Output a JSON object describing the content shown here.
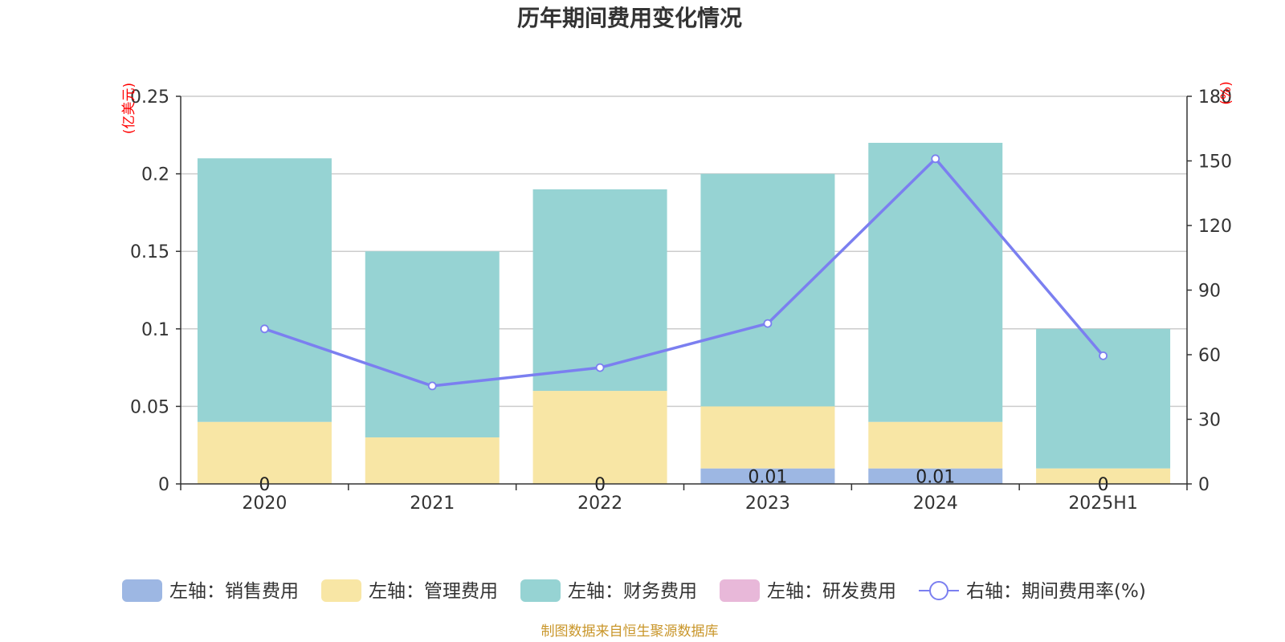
{
  "colors": {
    "sales": "#9db7e3",
    "admin": "#f8e6a5",
    "finance": "#96d3d3",
    "rnd": "#e8b8d9",
    "rate": "#7b7ff0",
    "axis_unit": "#ff0000",
    "source": "#c9962a"
  },
  "chart_data": {
    "type": "bar",
    "title": "历年期间费用变化情况",
    "left_unit": "(亿美元)",
    "right_unit": "(%)",
    "categories": [
      "2020",
      "2021",
      "2022",
      "2023",
      "2024",
      "2025H1"
    ],
    "left_axis": {
      "min": 0,
      "max": 0.25,
      "ticks": [
        "0",
        "0.05",
        "0.1",
        "0.15",
        "0.2",
        "0.25"
      ]
    },
    "right_axis": {
      "min": 0,
      "max": 180,
      "ticks": [
        "0",
        "30",
        "60",
        "90",
        "120",
        "150",
        "180"
      ]
    },
    "stacked": true,
    "grid": true,
    "legend_position": "bottom",
    "series": [
      {
        "name": "左轴：销售费用",
        "kind": "bar",
        "axis": "left",
        "color_key": "sales",
        "values": [
          0,
          0,
          0,
          0.01,
          0.01,
          0
        ],
        "labels": [
          "0",
          "",
          "0",
          "0.01",
          "0.01",
          "0"
        ]
      },
      {
        "name": "左轴：管理费用",
        "kind": "bar",
        "axis": "left",
        "color_key": "admin",
        "values": [
          0.04,
          0.03,
          0.06,
          0.04,
          0.03,
          0.01
        ]
      },
      {
        "name": "左轴：财务费用",
        "kind": "bar",
        "axis": "left",
        "color_key": "finance",
        "values": [
          0.17,
          0.12,
          0.13,
          0.15,
          0.18,
          0.09
        ]
      },
      {
        "name": "左轴：研发费用",
        "kind": "bar",
        "axis": "left",
        "color_key": "rnd",
        "values": [
          0,
          0,
          0,
          0,
          0,
          0
        ]
      },
      {
        "name": "右轴：期间费用率(%)",
        "kind": "line",
        "axis": "right",
        "color_key": "rate",
        "values": [
          72,
          45.5,
          54,
          74.5,
          151,
          59.5
        ]
      }
    ]
  },
  "footer": {
    "source": "制图数据来自恒生聚源数据库"
  }
}
